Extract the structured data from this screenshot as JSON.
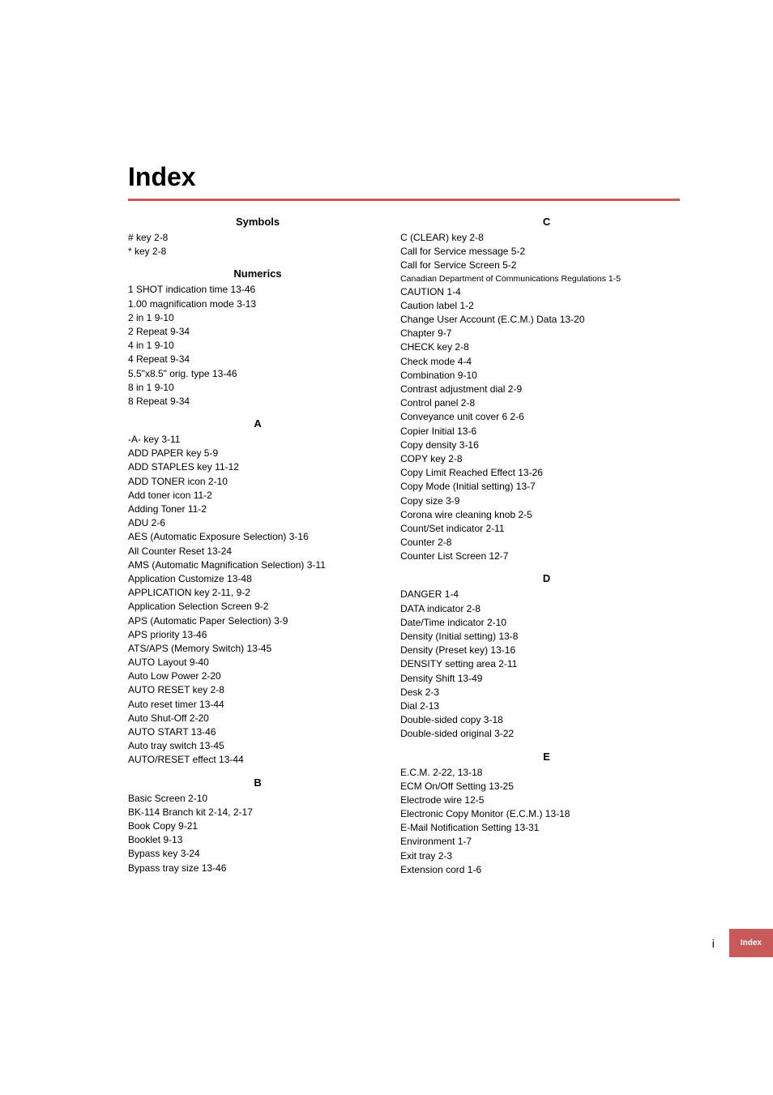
{
  "title": "Index",
  "footer": {
    "page_num": "i",
    "tab_label": "Index"
  },
  "left_sections": [
    {
      "heading": "Symbols",
      "entries": [
        "# key 2-8",
        "* key 2-8"
      ]
    },
    {
      "heading": "Numerics",
      "entries": [
        "1 SHOT indication time 13-46",
        "1.00 magnification mode 3-13",
        "2 in 1 9-10",
        "2 Repeat 9-34",
        "4 in 1 9-10",
        "4 Repeat 9-34",
        "5.5\"x8.5\" orig. type 13-46",
        "8 in 1 9-10",
        "8 Repeat 9-34"
      ]
    },
    {
      "heading": "A",
      "entries": [
        "-A- key 3-11",
        "ADD PAPER key 5-9",
        "ADD STAPLES key 11-12",
        "ADD TONER icon 2-10",
        "Add toner icon 11-2",
        "Adding Toner 11-2",
        "ADU 2-6",
        "AES (Automatic Exposure Selection) 3-16",
        "All Counter Reset 13-24",
        "AMS (Automatic Magnification Selection) 3-11",
        "Application Customize 13-48",
        "APPLICATION key 2-11, 9-2",
        "Application Selection Screen 9-2",
        "APS (Automatic Paper Selection) 3-9",
        "APS priority 13-46",
        "ATS/APS (Memory Switch) 13-45",
        "AUTO Layout 9-40",
        "Auto Low Power 2-20",
        "AUTO RESET key 2-8",
        "Auto reset timer 13-44",
        "Auto Shut-Off 2-20",
        "AUTO START 13-46",
        "Auto tray switch 13-45",
        "AUTO/RESET effect 13-44"
      ]
    },
    {
      "heading": "B",
      "entries": [
        "Basic Screen 2-10",
        "BK-114 Branch kit 2-14, 2-17",
        "Book Copy 9-21",
        "Booklet 9-13",
        "Bypass key 3-24",
        "Bypass tray size 13-46"
      ]
    }
  ],
  "right_sections": [
    {
      "heading": "C",
      "entries": [
        "C (CLEAR) key 2-8",
        "Call for Service message 5-2",
        "Call for Service Screen 5-2",
        {
          "text": "Canadian Department of Communications Regulations 1-5",
          "small": true
        },
        "CAUTION 1-4",
        "Caution label 1-2",
        "Change User Account (E.C.M.) Data 13-20",
        "Chapter 9-7",
        "CHECK key 2-8",
        "Check mode 4-4",
        "Combination 9-10",
        "Contrast adjustment dial 2-9",
        "Control panel 2-8",
        "Conveyance unit cover 6 2-6",
        "Copier Initial 13-6",
        "Copy density 3-16",
        "COPY key 2-8",
        "Copy Limit Reached Effect 13-26",
        "Copy Mode (Initial setting) 13-7",
        "Copy size 3-9",
        "Corona wire cleaning knob 2-5",
        "Count/Set indicator 2-11",
        "Counter 2-8",
        "Counter List Screen 12-7"
      ]
    },
    {
      "heading": "D",
      "entries": [
        "DANGER 1-4",
        "DATA indicator 2-8",
        "Date/Time indicator 2-10",
        "Density (Initial setting) 13-8",
        "Density (Preset key) 13-16",
        "DENSITY setting area 2-11",
        "Density Shift 13-49",
        "Desk 2-3",
        "Dial 2-13",
        "Double-sided copy 3-18",
        "Double-sided original 3-22"
      ]
    },
    {
      "heading": "E",
      "entries": [
        "E.C.M. 2-22, 13-18",
        "ECM On/Off Setting 13-25",
        "Electrode wire 12-5",
        "Electronic Copy Monitor (E.C.M.) 13-18",
        "E-Mail Notification Setting 13-31",
        "Environment 1-7",
        "Exit tray 2-3",
        "Extension cord 1-6"
      ]
    }
  ]
}
